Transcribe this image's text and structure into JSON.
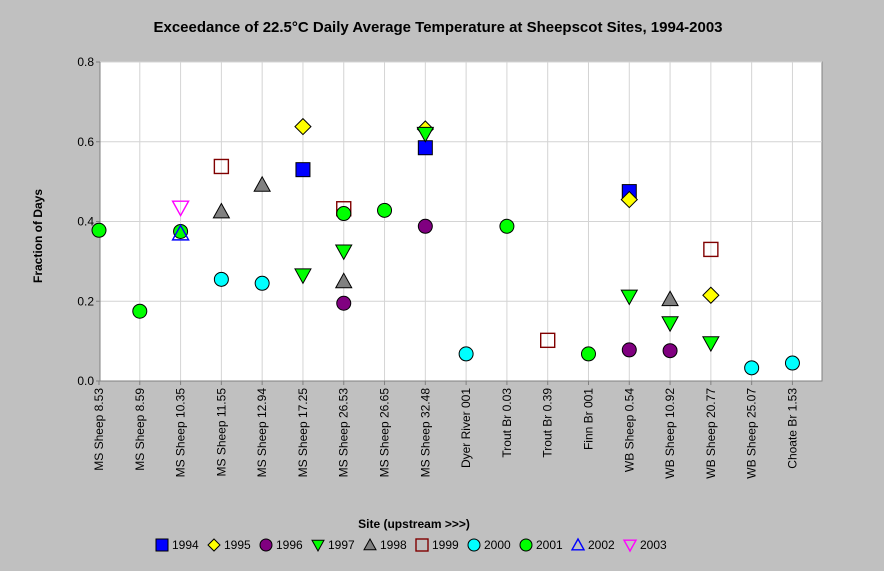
{
  "chart_data": {
    "type": "scatter",
    "title": "Exceedance of 22.5°C Daily Average Temperature at Sheepscot Sites, 1994-2003",
    "xlabel": "Site (upstream >>>)",
    "ylabel": "Fraction of Days",
    "ylim": [
      0,
      0.8
    ],
    "yticks": [
      "0.0",
      "0.2",
      "0.4",
      "0.6",
      "0.8"
    ],
    "grid": true,
    "legend_position": "bottom",
    "categories": [
      "MS Sheep 8.53",
      "MS Sheep 8.59",
      "MS Sheep 10.35",
      "MS Sheep 11.55",
      "MS Sheep 12.94",
      "MS Sheep 17.25",
      "MS Sheep 26.53",
      "MS Sheep 26.65",
      "MS Sheep 32.48",
      "Dyer River 001",
      "Trout Br 0.03",
      "Trout Br 0.39",
      "Finn Br 001",
      "WB Sheep 0.54",
      "WB Sheep 10.92",
      "WB Sheep 20.77",
      "WB Sheep 25.07",
      "Choate Br 1.53"
    ],
    "series": [
      {
        "name": "1994",
        "marker": "square",
        "color": "#0000ff",
        "filled": true,
        "points": [
          {
            "x": "MS Sheep 17.25",
            "y": 0.53
          },
          {
            "x": "MS Sheep 32.48",
            "y": 0.585
          },
          {
            "x": "WB Sheep 0.54",
            "y": 0.475
          }
        ]
      },
      {
        "name": "1995",
        "marker": "diamond",
        "color": "#ffff00",
        "filled": true,
        "points": [
          {
            "x": "MS Sheep 17.25",
            "y": 0.638
          },
          {
            "x": "MS Sheep 32.48",
            "y": 0.632
          },
          {
            "x": "WB Sheep 0.54",
            "y": 0.455
          },
          {
            "x": "WB Sheep 20.77",
            "y": 0.215
          }
        ]
      },
      {
        "name": "1996",
        "marker": "circle",
        "color": "#800080",
        "filled": true,
        "points": [
          {
            "x": "MS Sheep 26.53",
            "y": 0.195
          },
          {
            "x": "MS Sheep 32.48",
            "y": 0.388
          },
          {
            "x": "WB Sheep 0.54",
            "y": 0.078
          },
          {
            "x": "WB Sheep 10.92",
            "y": 0.076
          }
        ]
      },
      {
        "name": "1997",
        "marker": "triangle-down",
        "color": "#00ff00",
        "filled": true,
        "points": [
          {
            "x": "MS Sheep 17.25",
            "y": 0.265
          },
          {
            "x": "MS Sheep 26.53",
            "y": 0.325
          },
          {
            "x": "MS Sheep 32.48",
            "y": 0.62
          },
          {
            "x": "WB Sheep 0.54",
            "y": 0.212
          },
          {
            "x": "WB Sheep 10.92",
            "y": 0.145
          },
          {
            "x": "WB Sheep 20.77",
            "y": 0.095
          }
        ]
      },
      {
        "name": "1998",
        "marker": "triangle-up",
        "color": "#808080",
        "filled": true,
        "points": [
          {
            "x": "MS Sheep 11.55",
            "y": 0.425
          },
          {
            "x": "MS Sheep 12.94",
            "y": 0.492
          },
          {
            "x": "MS Sheep 26.53",
            "y": 0.25
          },
          {
            "x": "WB Sheep 10.92",
            "y": 0.205
          }
        ]
      },
      {
        "name": "1999",
        "marker": "square",
        "color": "#800000",
        "filled": false,
        "points": [
          {
            "x": "MS Sheep 11.55",
            "y": 0.538
          },
          {
            "x": "MS Sheep 26.53",
            "y": 0.432
          },
          {
            "x": "Trout Br 0.39",
            "y": 0.102
          },
          {
            "x": "WB Sheep 20.77",
            "y": 0.33
          }
        ]
      },
      {
        "name": "2000",
        "marker": "circle",
        "color": "#00ffff",
        "filled": true,
        "points": [
          {
            "x": "MS Sheep 11.55",
            "y": 0.255
          },
          {
            "x": "MS Sheep 12.94",
            "y": 0.245
          },
          {
            "x": "Dyer River 001",
            "y": 0.068
          },
          {
            "x": "WB Sheep 25.07",
            "y": 0.033
          },
          {
            "x": "Choate Br 1.53",
            "y": 0.045
          }
        ]
      },
      {
        "name": "2001",
        "marker": "circle",
        "color": "#00ff00",
        "filled": true,
        "points": [
          {
            "x": "MS Sheep 8.53",
            "y": 0.378
          },
          {
            "x": "MS Sheep 8.59",
            "y": 0.175
          },
          {
            "x": "MS Sheep 10.35",
            "y": 0.375
          },
          {
            "x": "MS Sheep 26.53",
            "y": 0.42
          },
          {
            "x": "MS Sheep 26.65",
            "y": 0.428
          },
          {
            "x": "Trout Br 0.03",
            "y": 0.388
          },
          {
            "x": "Finn Br 001",
            "y": 0.068
          }
        ]
      },
      {
        "name": "2002",
        "marker": "triangle-up",
        "color": "#0000ff",
        "filled": false,
        "points": [
          {
            "x": "MS Sheep 10.35",
            "y": 0.37
          }
        ]
      },
      {
        "name": "2003",
        "marker": "triangle-down",
        "color": "#ff00ff",
        "filled": false,
        "points": [
          {
            "x": "MS Sheep 10.35",
            "y": 0.435
          }
        ]
      }
    ]
  }
}
